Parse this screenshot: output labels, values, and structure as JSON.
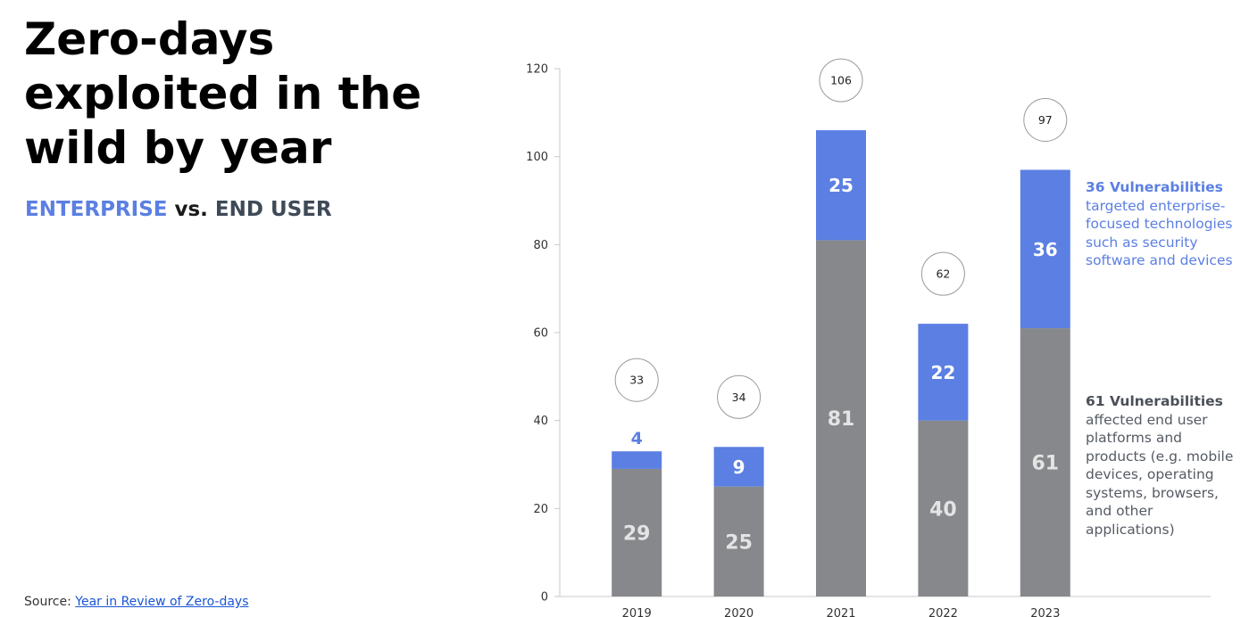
{
  "title_lines": [
    "Zero-days",
    "exploited in the",
    "wild by year"
  ],
  "subtitle": {
    "enterprise": "ENTERPRISE",
    "vs": " vs. ",
    "end_user": "END USER"
  },
  "source": {
    "label": "Source: ",
    "link_text": "Year in Review of Zero-days"
  },
  "colors": {
    "enterprise": "#5b7fe2",
    "end_user": "#86888c",
    "axis": "#c8c8c8",
    "tick_text": "#333333"
  },
  "chart_data": {
    "type": "bar",
    "stacked": true,
    "categories": [
      "2019",
      "2020",
      "2021",
      "2022",
      "2023"
    ],
    "series": [
      {
        "key": "end_user",
        "values": [
          29,
          25,
          81,
          40,
          61
        ],
        "color": "#86888c"
      },
      {
        "key": "enterprise",
        "values": [
          4,
          9,
          25,
          22,
          36
        ],
        "color": "#5b7fe2"
      }
    ],
    "totals": [
      33,
      34,
      106,
      62,
      97
    ],
    "ylim": [
      0,
      120
    ],
    "yticks": [
      0,
      20,
      40,
      60,
      80,
      100,
      120
    ],
    "grid": false,
    "annotations": {
      "enterprise": {
        "heading": "36 Vulnerabilities",
        "text": "targeted enterprise-focused technologies such as security software and devices"
      },
      "end_user": {
        "heading": "61 Vulnerabilities",
        "text": "affected end user platforms and products (e.g. mobile devices, operating systems, browsers, and other applications)"
      }
    }
  }
}
